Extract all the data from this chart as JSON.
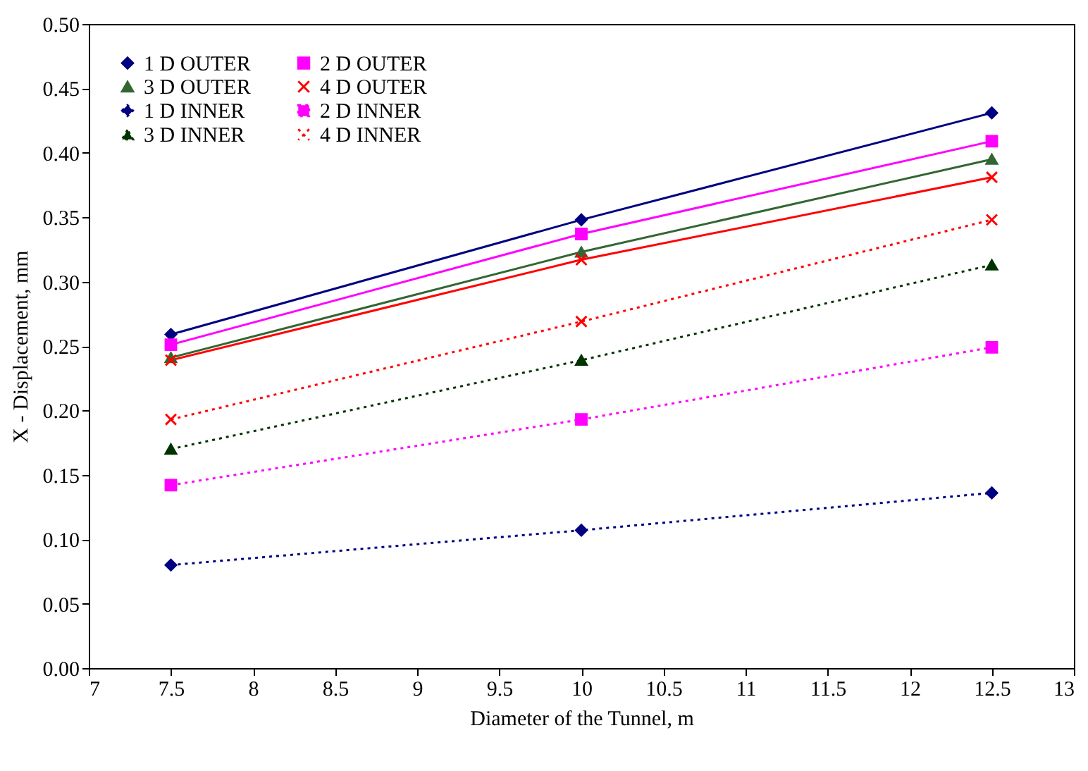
{
  "chart_data": {
    "type": "line",
    "xlabel": "Diameter of the Tunnel, m",
    "ylabel": "X - Displacement, mm",
    "x": [
      7.5,
      10,
      12.5
    ],
    "series": [
      {
        "name": "1 D OUTER",
        "color": "#000080",
        "marker": "diamond",
        "line_style": "solid",
        "values": [
          0.259,
          0.348,
          0.431
        ]
      },
      {
        "name": "2 D OUTER",
        "color": "#ff00ff",
        "marker": "square",
        "line_style": "solid",
        "values": [
          0.251,
          0.337,
          0.409
        ]
      },
      {
        "name": "3 D OUTER",
        "color": "#336633",
        "marker": "triangle",
        "line_style": "solid",
        "values": [
          0.241,
          0.323,
          0.395
        ]
      },
      {
        "name": "4 D OUTER",
        "color": "#ff0000",
        "marker": "cross",
        "line_style": "solid",
        "values": [
          0.239,
          0.317,
          0.381
        ]
      },
      {
        "name": "1 D INNER",
        "color": "#000080",
        "marker": "diamond",
        "line_style": "dotted",
        "values": [
          0.08,
          0.107,
          0.136
        ]
      },
      {
        "name": "2 D INNER",
        "color": "#ff00ff",
        "marker": "square",
        "line_style": "dotted",
        "values": [
          0.142,
          0.193,
          0.249
        ]
      },
      {
        "name": "3 D INNER",
        "color": "#003300",
        "marker": "triangle",
        "line_style": "dotted",
        "values": [
          0.17,
          0.239,
          0.313
        ]
      },
      {
        "name": "4 D INNER",
        "color": "#ff0000",
        "marker": "cross",
        "line_style": "dotted",
        "values": [
          0.193,
          0.269,
          0.348
        ]
      }
    ],
    "xlim": [
      7,
      13
    ],
    "xticks": [
      7,
      7.5,
      8,
      8.5,
      9,
      9.5,
      10,
      10.5,
      11,
      11.5,
      12,
      12.5,
      13
    ],
    "ylim": [
      0,
      0.5
    ],
    "yticks": [
      {
        "value": 0,
        "label": "0.00"
      },
      0.05,
      {
        "value": 0.1,
        "label": "0.10"
      },
      0.15,
      {
        "value": 0.2,
        "label": "0.20"
      },
      0.25,
      {
        "value": 0.3,
        "label": "0.30"
      },
      0.35,
      {
        "value": 0.4,
        "label": "0.40"
      },
      0.45,
      {
        "value": 0.5,
        "label": "0.50"
      }
    ],
    "grid": false,
    "legend": "top left"
  }
}
